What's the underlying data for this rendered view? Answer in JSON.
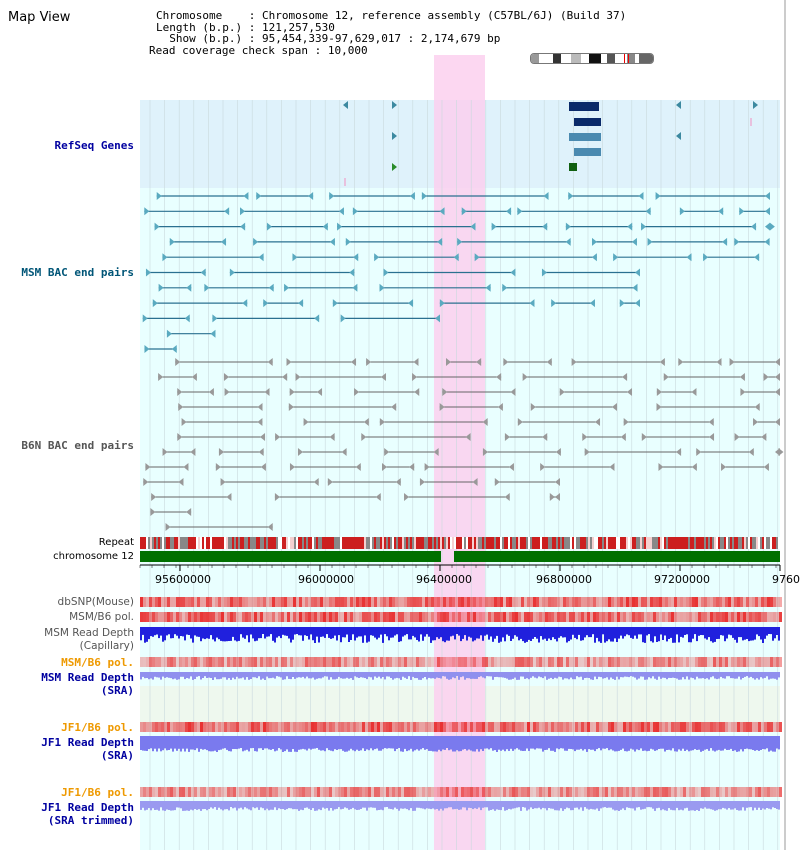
{
  "app_title": "Map View",
  "header": {
    "chromosome_key": "Chromosome",
    "chromosome_val": "Chromosome 12, reference assembly (C57BL/6J) (Build 37)",
    "length_key": "Length (b.p.)",
    "length_val": "121,257,530",
    "show_key": "Show (b.p.)",
    "show_val": "95,454,339-97,629,017 : 2,174,679 bp",
    "coverage_key": "Read coverage check span",
    "coverage_val": "10,000"
  },
  "tracks": {
    "refseq": "RefSeq Genes",
    "msm_bac": "MSM BAC end pairs",
    "b6n_bac": "B6N BAC end pairs",
    "repeat": "Repeat",
    "chromosome": "chromosome 12",
    "dbsnp": "dbSNP(Mouse)",
    "msm_b6_pol_1": "MSM/B6 pol.",
    "msm_depth_cap_1": "MSM Read Depth",
    "msm_depth_cap_2": "(Capillary)",
    "msm_b6_pol_2": "MSM/B6 pol.",
    "msm_depth_sra_1": "MSM Read Depth",
    "msm_depth_sra_2": "(SRA)",
    "jf1_pol_1": "JF1/B6 pol.",
    "jf1_depth_sra_1": "JF1 Read Depth",
    "jf1_depth_sra_2": "(SRA)",
    "jf1_pol_2": "JF1/B6 pol.",
    "jf1_depth_trim_1": "JF1 Read Depth",
    "jf1_depth_trim_2": "(SRA trimmed)"
  },
  "axis": {
    "ticks": [
      "95600000",
      "96000000",
      "96400000",
      "96800000",
      "97200000",
      "9760"
    ]
  },
  "colors": {
    "refseq_bg": "#dff2fb",
    "bac_bg": "#e9ffff",
    "highlight": "#fbd0ee",
    "msm_label": "#005577",
    "dark_label": "#0000a0",
    "orange_label": "#ee9900",
    "gray_label": "#555555",
    "chromosome_green": "#007000",
    "repeat_red": "#dd2222"
  }
}
